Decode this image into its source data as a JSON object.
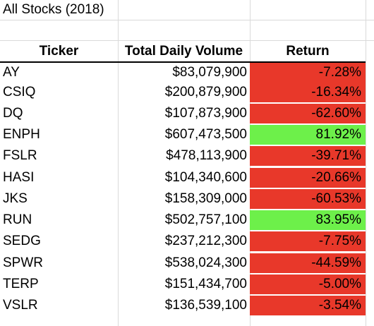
{
  "sheet": {
    "title": "All Stocks (2018)",
    "headers": {
      "ticker": "Ticker",
      "volume": "Total Daily Volume",
      "return": "Return"
    },
    "colors": {
      "negative": "#e8382a",
      "positive": "#6df04a",
      "gridline": "#dadada"
    },
    "rows": [
      {
        "ticker": "AY",
        "volume": "$83,079,900",
        "return": "-7.28%",
        "status": "negative"
      },
      {
        "ticker": "CSIQ",
        "volume": "$200,879,900",
        "return": "-16.34%",
        "status": "negative"
      },
      {
        "ticker": "DQ",
        "volume": "$107,873,900",
        "return": "-62.60%",
        "status": "negative"
      },
      {
        "ticker": "ENPH",
        "volume": "$607,473,500",
        "return": "81.92%",
        "status": "positive"
      },
      {
        "ticker": "FSLR",
        "volume": "$478,113,900",
        "return": "-39.71%",
        "status": "negative"
      },
      {
        "ticker": "HASI",
        "volume": "$104,340,600",
        "return": "-20.66%",
        "status": "negative"
      },
      {
        "ticker": "JKS",
        "volume": "$158,309,000",
        "return": "-60.53%",
        "status": "negative"
      },
      {
        "ticker": "RUN",
        "volume": "$502,757,100",
        "return": "83.95%",
        "status": "positive"
      },
      {
        "ticker": "SEDG",
        "volume": "$237,212,300",
        "return": "-7.75%",
        "status": "negative"
      },
      {
        "ticker": "SPWR",
        "volume": "$538,024,300",
        "return": "-44.59%",
        "status": "negative"
      },
      {
        "ticker": "TERP",
        "volume": "$151,434,700",
        "return": "-5.00%",
        "status": "negative"
      },
      {
        "ticker": "VSLR",
        "volume": "$136,539,100",
        "return": "-3.54%",
        "status": "negative"
      }
    ]
  }
}
